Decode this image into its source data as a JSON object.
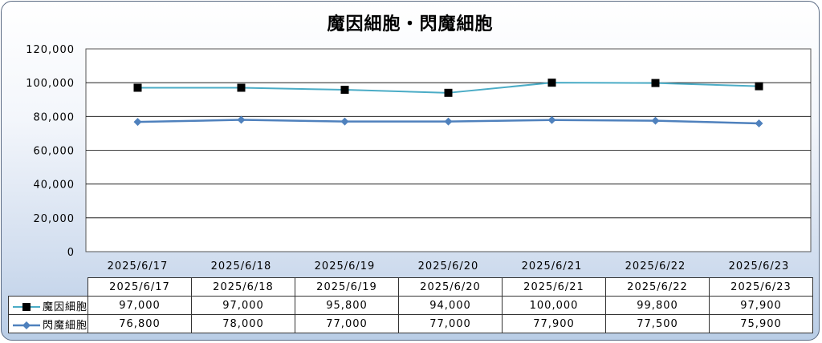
{
  "chart_data": {
    "type": "line",
    "title": "魔因細胞・閃魔細胞",
    "categories": [
      "2025/6/17",
      "2025/6/18",
      "2025/6/19",
      "2025/6/20",
      "2025/6/21",
      "2025/6/22",
      "2025/6/23"
    ],
    "ylim": [
      0,
      120000
    ],
    "yticks": [
      "0",
      "20,000",
      "40,000",
      "60,000",
      "80,000",
      "100,000",
      "120,000"
    ],
    "grid": true,
    "legend": "data-table",
    "series": [
      {
        "name": "魔因細胞",
        "color": "#4bacc6",
        "marker": "square",
        "values": [
          97000,
          97000,
          95800,
          94000,
          100000,
          99800,
          97900
        ],
        "labels": [
          "97,000",
          "97,000",
          "95,800",
          "94,000",
          "100,000",
          "99,800",
          "97,900"
        ]
      },
      {
        "name": "閃魔細胞",
        "color": "#4f81bd",
        "marker": "diamond",
        "values": [
          76800,
          78000,
          77000,
          77000,
          77900,
          77500,
          75900
        ],
        "labels": [
          "76,800",
          "78,000",
          "77,000",
          "77,000",
          "77,900",
          "77,500",
          "75,900"
        ]
      }
    ]
  }
}
